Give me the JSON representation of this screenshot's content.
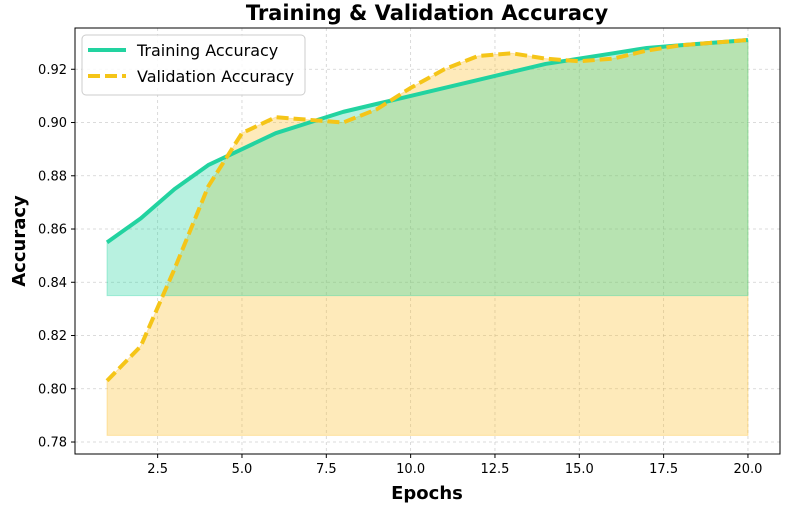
{
  "chart_data": {
    "type": "line",
    "title": "Training & Validation Accuracy",
    "xlabel": "Epochs",
    "ylabel": "Accuracy",
    "xlim": [
      0.05,
      20.95
    ],
    "ylim": [
      0.7755,
      0.9355
    ],
    "x_ticks": [
      "2.5",
      "5.0",
      "7.5",
      "10.0",
      "12.5",
      "15.0",
      "17.5",
      "20.0"
    ],
    "y_ticks": [
      "0.78",
      "0.80",
      "0.82",
      "0.84",
      "0.86",
      "0.88",
      "0.90",
      "0.92"
    ],
    "grid": true,
    "legend_position": "top-left",
    "x": [
      1,
      2,
      3,
      4,
      5,
      6,
      7,
      8,
      9,
      10,
      11,
      12,
      13,
      14,
      15,
      16,
      17,
      18,
      19,
      20
    ],
    "series": [
      {
        "name": "Training Accuracy",
        "color": "#22d3a0",
        "style": "solid",
        "fill_color": "#22d3a0",
        "fill_base": 0.835,
        "values": [
          0.855,
          0.864,
          0.875,
          0.884,
          0.89,
          0.896,
          0.9,
          0.904,
          0.907,
          0.91,
          0.913,
          0.916,
          0.919,
          0.922,
          0.924,
          0.926,
          0.928,
          0.929,
          0.93,
          0.931
        ]
      },
      {
        "name": "Validation Accuracy",
        "color": "#f5c518",
        "style": "dashed",
        "fill_color": "#fbc02d",
        "fill_base": 0.7825,
        "values": [
          0.803,
          0.816,
          0.845,
          0.876,
          0.896,
          0.902,
          0.901,
          0.9,
          0.905,
          0.913,
          0.92,
          0.925,
          0.926,
          0.924,
          0.923,
          0.924,
          0.927,
          0.929,
          0.93,
          0.931
        ]
      }
    ]
  }
}
